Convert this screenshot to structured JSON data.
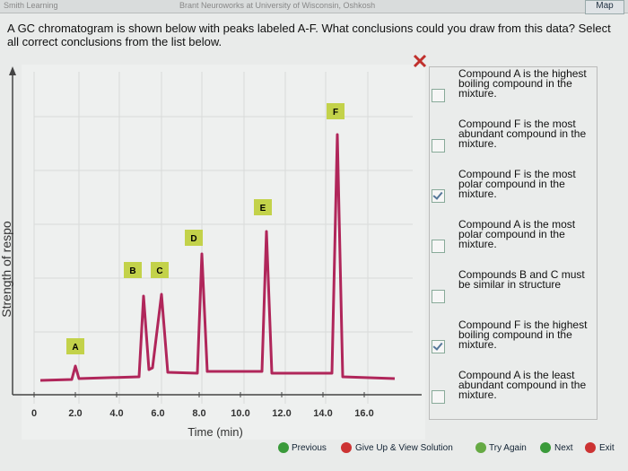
{
  "header": {
    "top_text": "Smith Learning",
    "university": "Brant Neuroworks at University of Wisconsin, Oshkosh",
    "map_button": "Map"
  },
  "question": "A GC chromatogram is shown below with peaks labeled A-F. What conclusions could you draw from this data? Select all correct conclusions from the list below.",
  "figure": {
    "y_label": "Strength of respo",
    "x_label": "Time (min)",
    "xticks": [
      0,
      {
        "value": 2,
        "label": "2.0"
      },
      {
        "value": 4,
        "label": "4.0"
      },
      {
        "value": 6,
        "label": "6.0"
      },
      {
        "value": 8,
        "label": "8.0"
      },
      {
        "value": 10,
        "label": "10.0"
      },
      {
        "value": 12,
        "label": "12.0"
      },
      {
        "value": 14,
        "label": "14.0"
      },
      {
        "value": 16,
        "label": "16.0"
      }
    ],
    "peak_labels": [
      "A",
      "B",
      "C",
      "D",
      "E",
      "F"
    ]
  },
  "options": [
    {
      "text": "Compound A is the highest boiling compound in the mixture.",
      "checked": false
    },
    {
      "text": "Compound F is the most abundant compound in the mixture.",
      "checked": false
    },
    {
      "text": "Compound F is the most polar compound in the mixture.",
      "checked": true
    },
    {
      "text": "Compound A is the most polar compound in the mixture.",
      "checked": false
    },
    {
      "text": "Compounds B and C must be similar in structure",
      "checked": false
    },
    {
      "text": "Compound F is the highest boiling compound in the mixture.",
      "checked": true
    },
    {
      "text": "Compound A is the least abundant compound in the mixture.",
      "checked": false
    }
  ],
  "buttons": [
    "Previous",
    "Give Up & View Solution",
    "Try Again",
    "Next",
    "Exit"
  ]
}
